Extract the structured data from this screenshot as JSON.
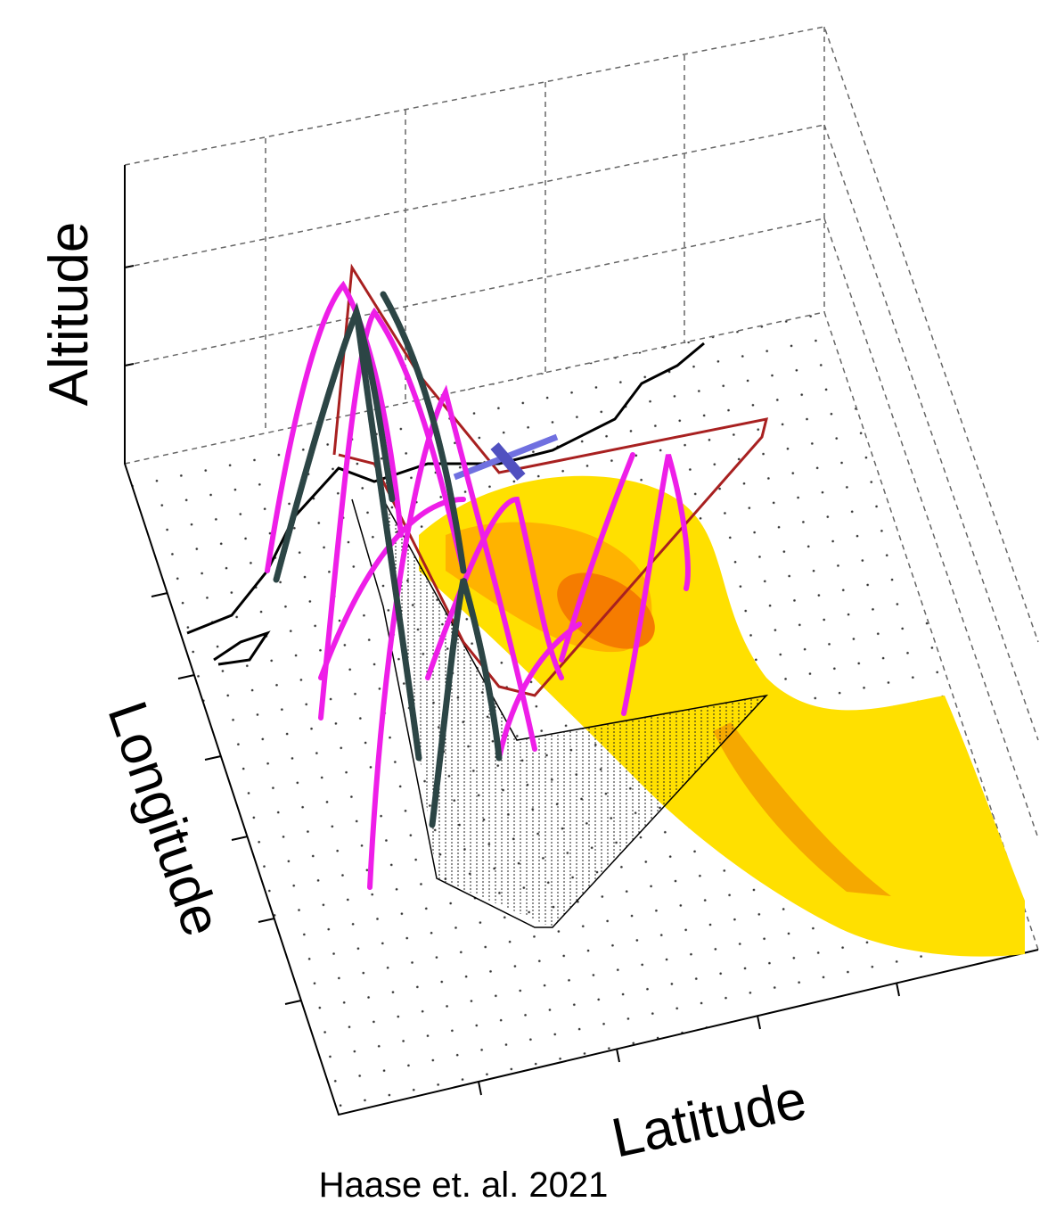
{
  "axes": {
    "altitude": "Altitude",
    "longitude": "Longitude",
    "latitude": "Latitude"
  },
  "caption": "Haase et. al. 2021"
}
